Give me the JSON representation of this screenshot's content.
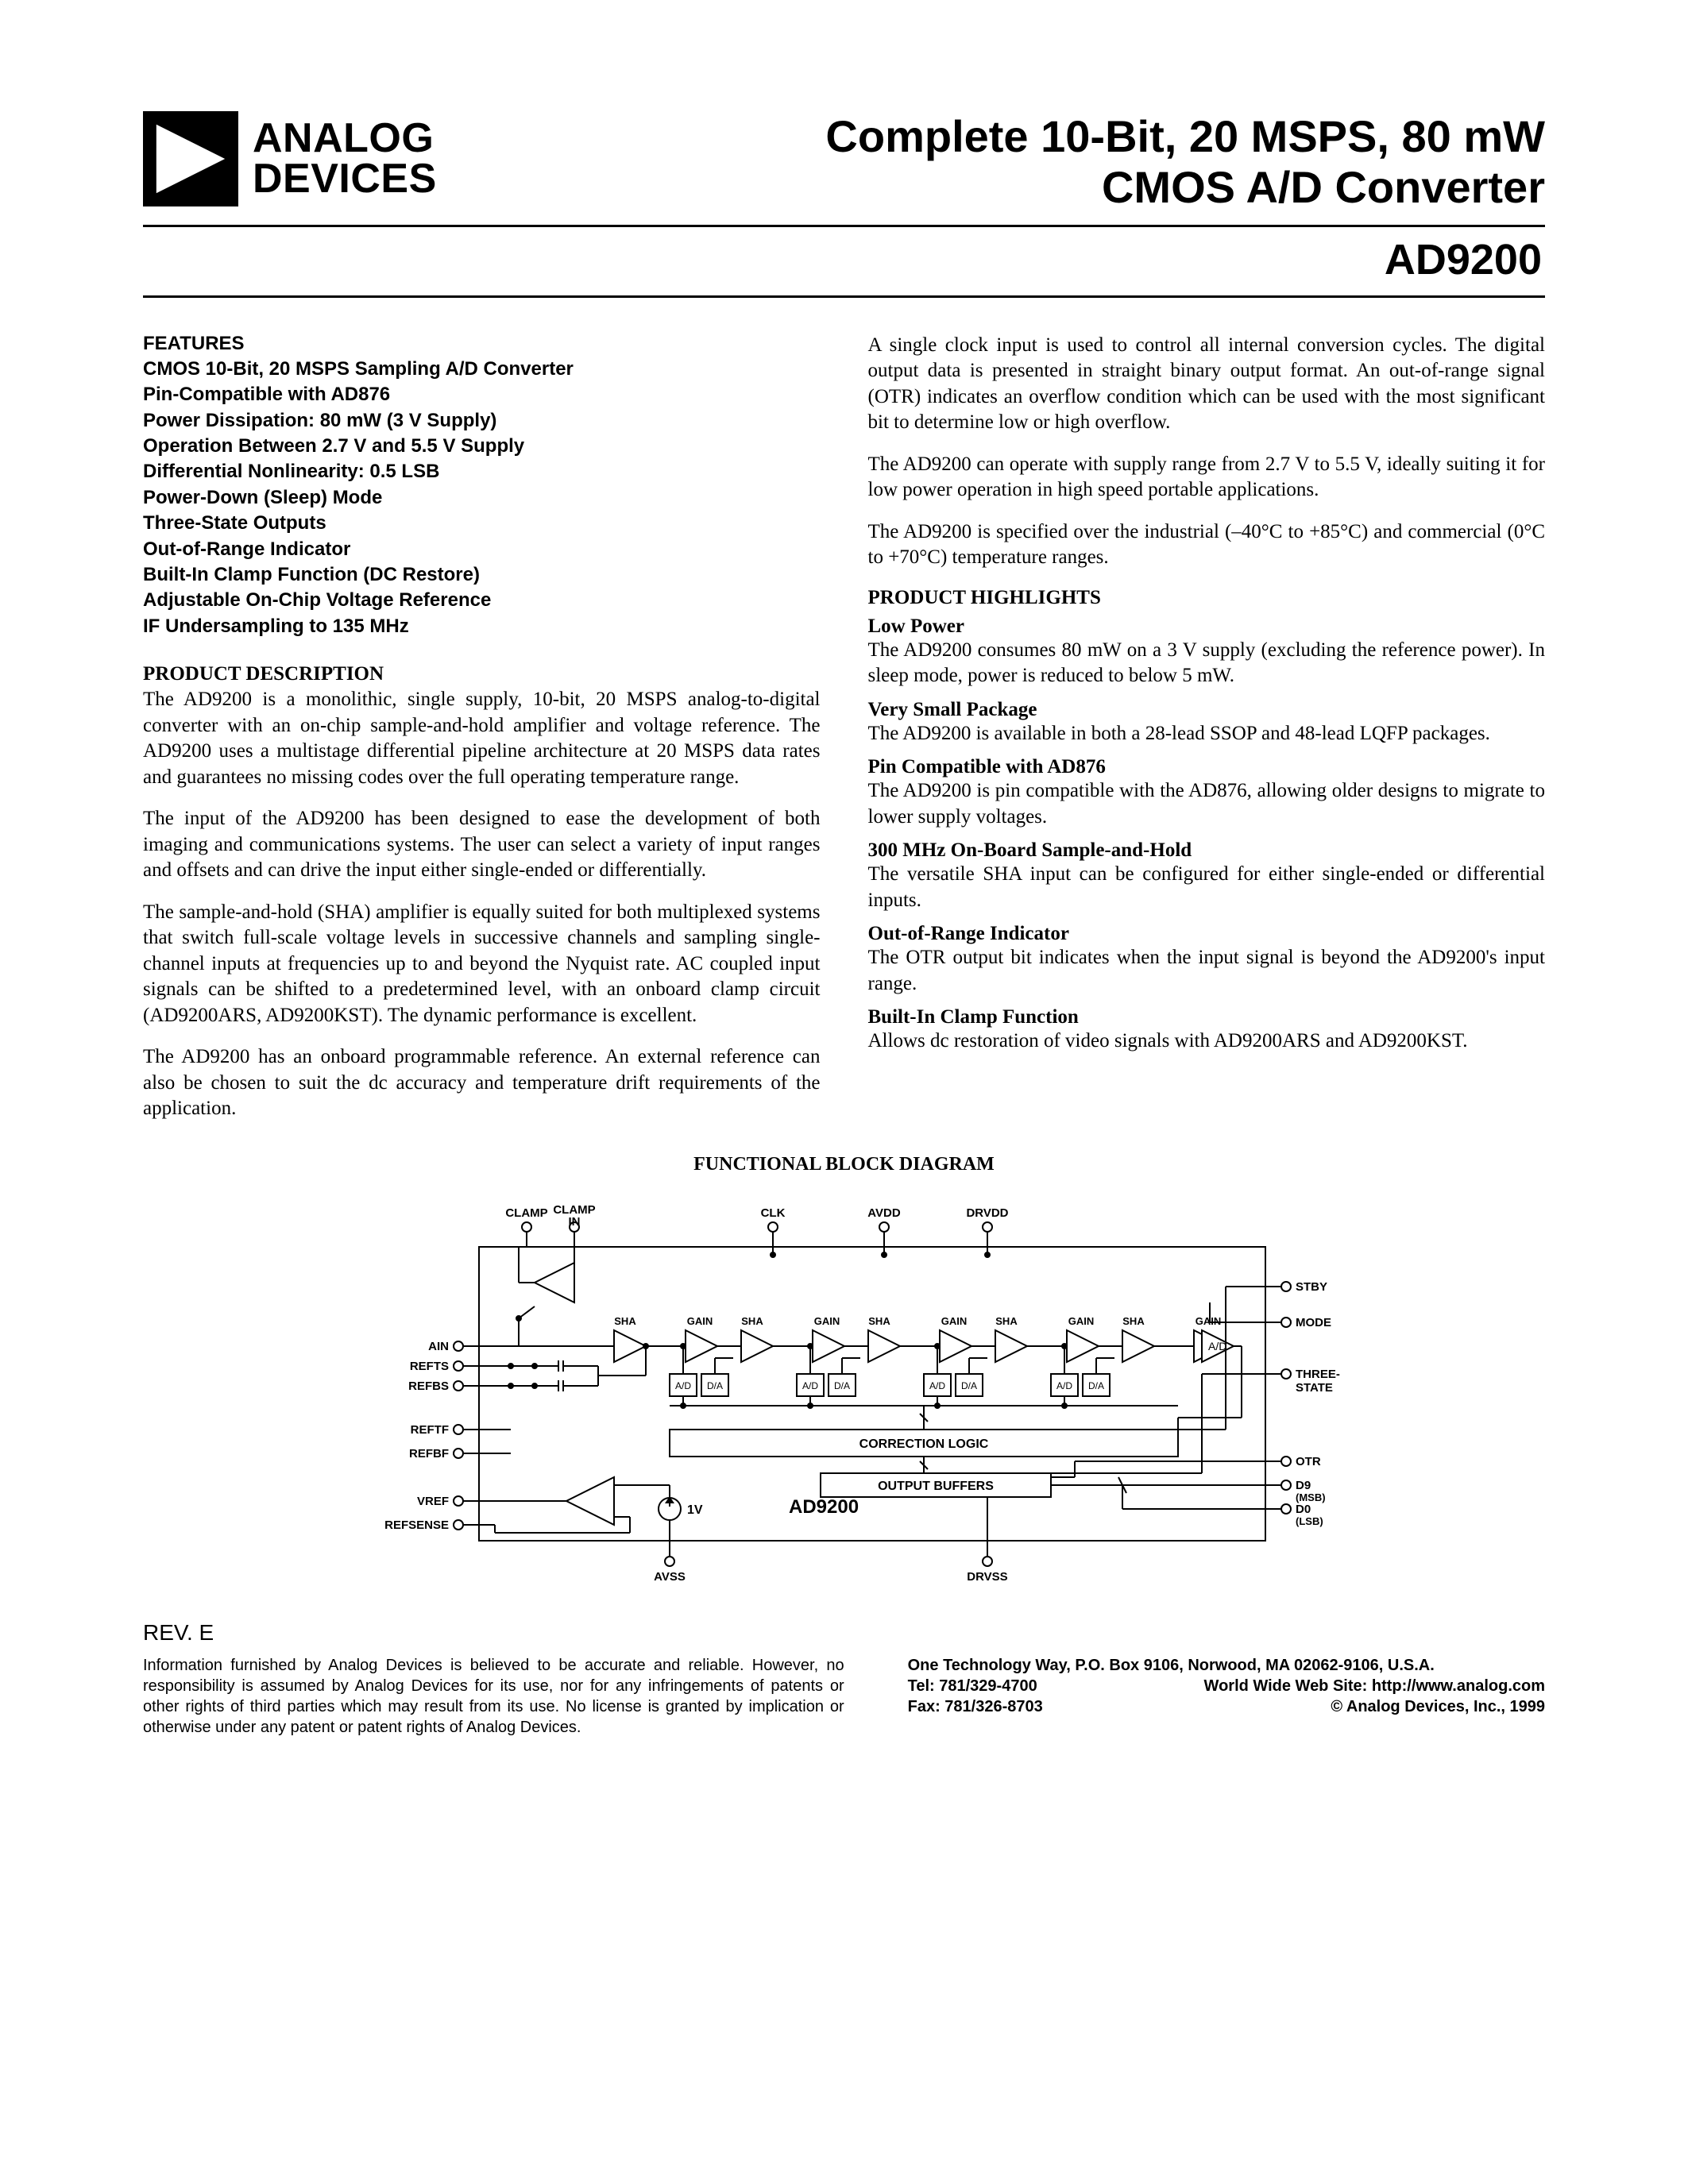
{
  "logo": {
    "line1": "ANALOG",
    "line2": "DEVICES"
  },
  "title": {
    "line1": "Complete 10-Bit, 20 MSPS, 80 mW",
    "line2": "CMOS A/D Converter"
  },
  "partno": "AD9200",
  "features": {
    "heading": "FEATURES",
    "items": [
      "CMOS 10-Bit, 20 MSPS Sampling A/D Converter",
      "Pin-Compatible with AD876",
      "Power Dissipation: 80 mW (3 V Supply)",
      "Operation Between 2.7 V and 5.5 V Supply",
      "Differential Nonlinearity: 0.5 LSB",
      "Power-Down (Sleep) Mode",
      "Three-State Outputs",
      "Out-of-Range Indicator",
      "Built-In Clamp Function (DC Restore)",
      "Adjustable On-Chip Voltage Reference",
      "IF Undersampling to 135 MHz"
    ]
  },
  "desc": {
    "heading": "PRODUCT DESCRIPTION",
    "p1": "The AD9200 is a monolithic, single supply, 10-bit, 20 MSPS analog-to-digital converter with an on-chip sample-and-hold amplifier and voltage reference. The AD9200 uses a multistage differential pipeline architecture at 20 MSPS data rates and guarantees no missing codes over the full operating temperature range.",
    "p2": "The input of the AD9200 has been designed to ease the development of both imaging and communications systems. The user can select a variety of input ranges and offsets and can drive the input either single-ended or differentially.",
    "p3": "The sample-and-hold (SHA) amplifier is equally suited for both multiplexed systems that switch full-scale voltage levels in successive channels and sampling single-channel inputs at frequencies up to and beyond the Nyquist rate. AC coupled input signals can be shifted to a predetermined level, with an onboard clamp circuit (AD9200ARS, AD9200KST). The dynamic performance is excellent.",
    "p4": "The AD9200 has an onboard programmable reference. An external reference can also be chosen to suit the dc accuracy and temperature drift requirements of the application."
  },
  "right": {
    "p1": "A single clock input is used to control all internal conversion cycles. The digital output data is presented in straight binary output format. An out-of-range signal (OTR) indicates an overflow condition which can be used with the most significant bit to determine low or high overflow.",
    "p2": "The AD9200 can operate with supply range from 2.7 V to 5.5 V, ideally suiting it for low power operation in high speed portable applications.",
    "p3": "The AD9200 is specified over the industrial (–40°C to +85°C) and commercial (0°C to +70°C) temperature ranges."
  },
  "highlights": {
    "heading": "PRODUCT HIGHLIGHTS",
    "items": [
      {
        "sub": "Low Power",
        "body": "The AD9200 consumes 80 mW on a 3 V supply (excluding the reference power). In sleep mode, power is reduced to below 5 mW."
      },
      {
        "sub": "Very Small Package",
        "body": "The AD9200 is available in both a 28-lead SSOP and 48-lead LQFP packages."
      },
      {
        "sub": "Pin Compatible with AD876",
        "body": "The AD9200 is pin compatible with the AD876, allowing older designs to migrate to lower supply voltages."
      },
      {
        "sub": "300 MHz On-Board Sample-and-Hold",
        "body": "The versatile SHA input can be configured for either single-ended or differential inputs."
      },
      {
        "sub": "Out-of-Range Indicator",
        "body": "The OTR output bit indicates when the input signal is beyond the AD9200's input range."
      },
      {
        "sub": "Built-In Clamp Function",
        "body": "Allows dc restoration of video signals with AD9200ARS and AD9200KST."
      }
    ]
  },
  "diagram": {
    "title": "FUNCTIONAL BLOCK DIAGRAM",
    "labels": {
      "clamp": "CLAMP",
      "clamp_in": "CLAMP\nIN",
      "clk": "CLK",
      "avdd": "AVDD",
      "drvdd": "DRVDD",
      "stby": "STBY",
      "mode": "MODE",
      "three_state": "THREE-\nSTATE",
      "ain": "AIN",
      "refts": "REFTS",
      "refbs": "REFBS",
      "reftf": "REFTF",
      "refbf": "REFBF",
      "vref": "VREF",
      "refsense": "REFSENSE",
      "sha": "SHA",
      "gain": "GAIN",
      "ad": "A/D",
      "da": "D/A",
      "correction": "CORRECTION LOGIC",
      "output_buf": "OUTPUT BUFFERS",
      "partname": "AD9200",
      "one_v": "1V",
      "otr": "OTR",
      "d9": "D9",
      "msb": "(MSB)",
      "d0": "D0",
      "lsb": "(LSB)",
      "avss": "AVSS",
      "drvss": "DRVSS"
    },
    "colors": {
      "stroke": "#000000",
      "fill_box": "#ffffff"
    },
    "stroke_width": 2
  },
  "rev": "REV. E",
  "footer": {
    "disclaimer": "Information furnished by Analog Devices is believed to be accurate and reliable. However, no responsibility is assumed by Analog Devices for its use, nor for any infringements of patents or other rights of third parties which may result from its use. No license is granted by implication or otherwise under any patent or patent rights of Analog Devices.",
    "addr": "One Technology Way, P.O. Box 9106, Norwood, MA 02062-9106,  U.S.A.",
    "tel_label": "Tel: 781/329-4700",
    "web_label": "World Wide Web Site: http://www.analog.com",
    "fax_label": "Fax: 781/326-8703",
    "copyright": "© Analog Devices, Inc., 1999"
  }
}
